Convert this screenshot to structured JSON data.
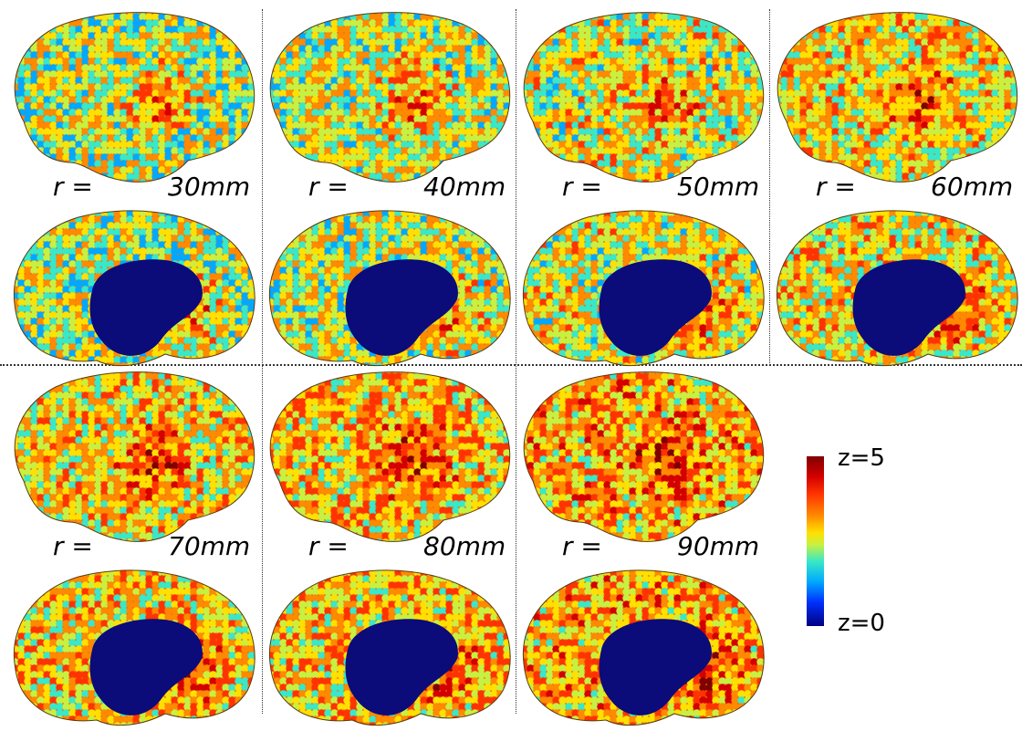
{
  "panels": [
    {
      "r_label": "r =",
      "value": "30mm"
    },
    {
      "r_label": "r =",
      "value": "40mm"
    },
    {
      "r_label": "r =",
      "value": "50mm"
    },
    {
      "r_label": "r =",
      "value": "60mm"
    },
    {
      "r_label": "r =",
      "value": "70mm"
    },
    {
      "r_label": "r =",
      "value": "80mm"
    },
    {
      "r_label": "r =",
      "value": "90mm"
    }
  ],
  "colorbar": {
    "max_label": "z=5",
    "min_label": "z=0",
    "colors": [
      "#7f0000",
      "#d40000",
      "#ff3300",
      "#ff8a00",
      "#ffe000",
      "#c8f040",
      "#38e8c8",
      "#00a8ff",
      "#0030ff",
      "#00007f"
    ]
  }
}
